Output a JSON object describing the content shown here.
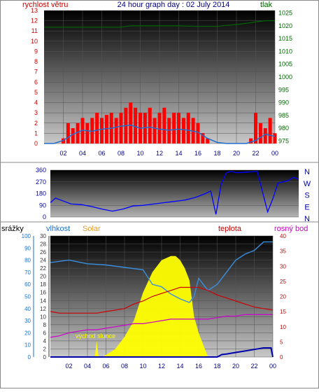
{
  "header": {
    "title": "24 hour graph day : 02 July 2014",
    "wind_label": "rychlost větru",
    "pressure_label": "tlak"
  },
  "direction_panel": {
    "letters": [
      "N",
      "W",
      "S",
      "E",
      "N"
    ]
  },
  "bottom_header": {
    "rain_label": "srážky",
    "humidity_label": "vlhkost",
    "solar_label": "Solar",
    "temp_label": "teplota",
    "dew_label": "rosný bod"
  },
  "annotation": {
    "sunrise": "východ slunce"
  },
  "colors": {
    "wind": "#ff0000",
    "wind_avg": "#1e6fd0",
    "pressure": "#006600",
    "direction": "#0000ff",
    "humidity": "#3a8fe0",
    "solar": "#ffff00",
    "temp": "#cc0000",
    "dew": "#cc00cc",
    "rain": "#0000aa"
  },
  "chart_data": [
    {
      "type": "line",
      "title": "24 hour graph day : 02 July 2014",
      "x_ticks": [
        "02",
        "04",
        "06",
        "08",
        "10",
        "12",
        "14",
        "16",
        "18",
        "20",
        "22",
        "00"
      ],
      "xlim": [
        0,
        24
      ],
      "y_left": {
        "label": "rychlost větru",
        "range": [
          0,
          13
        ],
        "ticks": [
          "0",
          "1",
          "2",
          "3",
          "4",
          "5",
          "6",
          "7",
          "8",
          "9",
          "10",
          "11",
          "12",
          "13"
        ]
      },
      "y_right": {
        "label": "tlak",
        "range": [
          974,
          1026
        ],
        "ticks": [
          "975",
          "980",
          "985",
          "990",
          "995",
          "1000",
          "1005",
          "1010",
          "1015",
          "1020",
          "1025"
        ]
      },
      "series": [
        {
          "name": "rychlost větru",
          "kind": "gust",
          "x": [
            0,
            0.5,
            1,
            1.5,
            2,
            2.5,
            3,
            3.5,
            4,
            4.5,
            5,
            5.5,
            6,
            6.5,
            7,
            7.5,
            8,
            8.5,
            9,
            9.5,
            10,
            10.5,
            11,
            11.5,
            12,
            12.5,
            13,
            13.5,
            14,
            14.5,
            15,
            15.5,
            16,
            16.5,
            17,
            17.5,
            18,
            18.5,
            19,
            19.5,
            20,
            20.5,
            21,
            21.5,
            22,
            22.5,
            23,
            23.5,
            24
          ],
          "values": [
            0,
            0,
            0,
            0,
            0.5,
            2,
            1.5,
            2,
            2.5,
            2,
            2.5,
            3,
            2.5,
            2.8,
            3,
            2.5,
            3,
            3.5,
            4,
            3.5,
            3,
            3,
            3.5,
            2.5,
            3,
            3.5,
            2.5,
            3,
            3,
            2.5,
            3,
            2.5,
            2,
            1,
            0.5,
            0,
            0,
            0,
            0,
            0,
            0,
            0,
            0,
            0.5,
            3,
            2,
            1.5,
            2.5,
            1
          ]
        },
        {
          "name": "avg",
          "x": [
            0,
            1,
            2,
            3,
            4,
            5,
            6,
            7,
            8,
            9,
            10,
            11,
            12,
            13,
            14,
            15,
            16,
            17,
            18,
            19,
            20,
            21,
            22,
            23,
            24
          ],
          "values": [
            0,
            0,
            0.3,
            0.9,
            1.3,
            1.2,
            1.4,
            1.5,
            1.7,
            1.8,
            1.5,
            1.6,
            1.4,
            1.3,
            1.4,
            1.3,
            1.1,
            0.5,
            0.1,
            0,
            0,
            0,
            0.3,
            0.9,
            0.7
          ]
        },
        {
          "name": "tlak",
          "axis": "right",
          "x": [
            0,
            2,
            4,
            6,
            8,
            9,
            10,
            12,
            14,
            16,
            18,
            19,
            20,
            21,
            22,
            23,
            24
          ],
          "values": [
            1019.5,
            1019.5,
            1019.5,
            1019.5,
            1019.5,
            1020,
            1020,
            1020,
            1020,
            1019.8,
            1019.8,
            1020.2,
            1020.5,
            1021,
            1021.5,
            1022,
            1022
          ]
        }
      ]
    },
    {
      "type": "line",
      "title": "",
      "x_ticks": [],
      "xlim": [
        0,
        24
      ],
      "y": {
        "range": [
          0,
          360
        ],
        "ticks": [
          "0",
          "90",
          "180",
          "270",
          "360"
        ]
      },
      "series": [
        {
          "name": "direction",
          "x": [
            0,
            0.5,
            1,
            2,
            3,
            4,
            5,
            6,
            7,
            8,
            9,
            10,
            11,
            12,
            13,
            14,
            15,
            15.5,
            16,
            16.5,
            17,
            17.5,
            18,
            19,
            20,
            21,
            21.5,
            22,
            22.5,
            23,
            23.5,
            24
          ],
          "values": [
            110,
            145,
            130,
            100,
            95,
            80,
            60,
            45,
            60,
            85,
            90,
            100,
            110,
            120,
            130,
            150,
            180,
            200,
            20,
            250,
            340,
            350,
            340,
            345,
            350,
            40,
            140,
            260,
            270,
            280,
            305,
            290
          ]
        }
      ]
    },
    {
      "type": "line",
      "title": "",
      "x_ticks": [
        "02",
        "04",
        "06",
        "08",
        "10",
        "12",
        "14",
        "16",
        "18",
        "20",
        "22",
        "00"
      ],
      "xlim": [
        0,
        24
      ],
      "axes": {
        "srážky": {
          "range": [
            0,
            100
          ],
          "ticks": [
            "0",
            "10",
            "20",
            "30",
            "40",
            "50",
            "60",
            "70",
            "80",
            "90",
            "100"
          ]
        },
        "vlhkost": {
          "range": [
            0,
            30
          ],
          "ticks": [
            "0",
            "2",
            "4",
            "6",
            "8",
            "10",
            "12",
            "14",
            "16",
            "18",
            "20",
            "22",
            "24",
            "26",
            "28",
            "30"
          ]
        },
        "teplota": {
          "range": [
            0,
            40
          ],
          "ticks": [
            "0",
            "5",
            "10",
            "15",
            "20",
            "25",
            "30",
            "35",
            "40"
          ]
        }
      },
      "series": [
        {
          "name": "vlhkost",
          "axis": "srážky",
          "x": [
            0,
            2,
            4,
            6,
            8,
            10,
            11,
            12,
            13,
            14,
            15,
            15.5,
            16,
            17,
            18,
            19,
            20,
            21,
            22,
            23,
            24
          ],
          "values": [
            78,
            80,
            77,
            76,
            74,
            72,
            60,
            58,
            52,
            48,
            45,
            50,
            65,
            55,
            60,
            70,
            80,
            85,
            88,
            95,
            95
          ]
        },
        {
          "name": "Solar",
          "axis": "vlhkost",
          "x": [
            4,
            4.8,
            5,
            5.2,
            5.5,
            6,
            7,
            8,
            9,
            10,
            11,
            12,
            13,
            13.5,
            14,
            14.5,
            15,
            15.5,
            16,
            16.5,
            17
          ],
          "values": [
            0,
            0,
            4,
            0,
            0,
            0.5,
            2,
            5,
            9,
            16,
            21,
            24,
            25,
            25,
            24,
            22,
            19,
            10,
            6,
            3,
            0
          ]
        },
        {
          "name": "teplota",
          "axis": "teplota",
          "x": [
            0,
            1,
            2,
            3,
            4,
            5,
            6,
            7,
            8,
            9,
            10,
            11,
            12,
            13,
            14,
            15,
            16,
            17,
            18,
            19,
            20,
            21,
            22,
            23,
            24
          ],
          "values": [
            15,
            14.5,
            14.5,
            14.5,
            14.5,
            14.5,
            15,
            15.5,
            16,
            17.5,
            18.5,
            20,
            21,
            22,
            23,
            23,
            23,
            22,
            20.5,
            19.5,
            18.5,
            17.5,
            16.5,
            16,
            15.5
          ]
        },
        {
          "name": "rosný bod",
          "axis": "teplota",
          "x": [
            0,
            1,
            2,
            3,
            4,
            5,
            6,
            7,
            8,
            9,
            10,
            11,
            12,
            13,
            14,
            15,
            16,
            17,
            18,
            19,
            20,
            21,
            22,
            23,
            24
          ],
          "values": [
            6.5,
            7,
            8,
            8.5,
            9,
            9,
            9.5,
            10,
            10.5,
            11,
            11,
            11.5,
            12,
            12.5,
            12.5,
            12.5,
            12.5,
            12.5,
            13,
            13.5,
            13.5,
            14,
            14,
            14,
            14
          ]
        },
        {
          "name": "srážky",
          "axis": "teplota",
          "x": [
            0,
            17,
            18,
            18.5,
            19,
            20,
            21,
            22,
            23,
            23.8,
            24
          ],
          "values": [
            0,
            0,
            0,
            0.8,
            1,
            1.5,
            2,
            2.5,
            3,
            3,
            0
          ]
        }
      ]
    }
  ]
}
